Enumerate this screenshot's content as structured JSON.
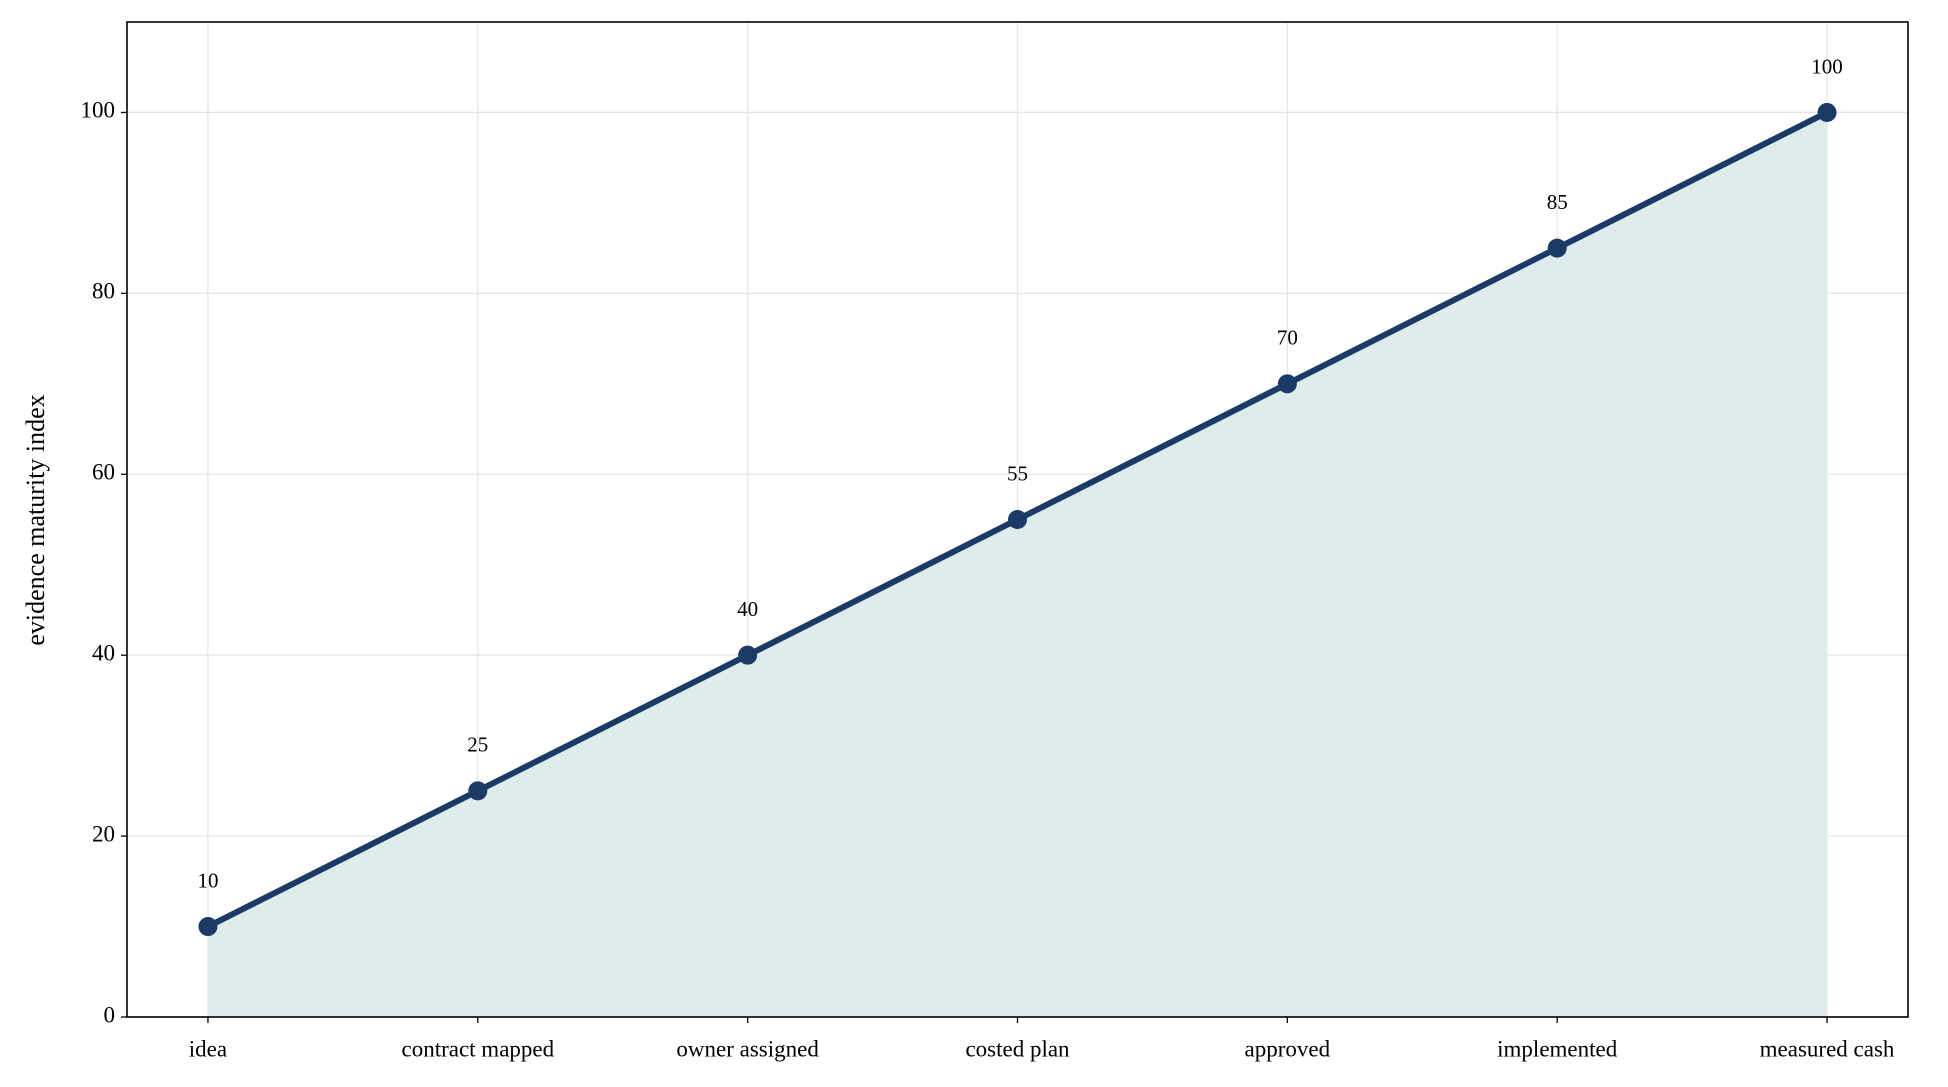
{
  "chart_data": {
    "type": "line",
    "ylabel": "evidence maturity index",
    "categories": [
      "idea",
      "contract mapped",
      "owner assigned",
      "costed plan",
      "approved",
      "implemented",
      "measured cash"
    ],
    "series": [
      {
        "name": "evidence maturity index",
        "color": "#1b3a66",
        "fill": "#dfecec",
        "values": [
          10,
          25,
          40,
          55,
          70,
          85,
          100
        ]
      }
    ],
    "ylim": [
      0,
      110
    ],
    "yticks": [
      0,
      20,
      40,
      60,
      80,
      100
    ],
    "grid": true
  }
}
